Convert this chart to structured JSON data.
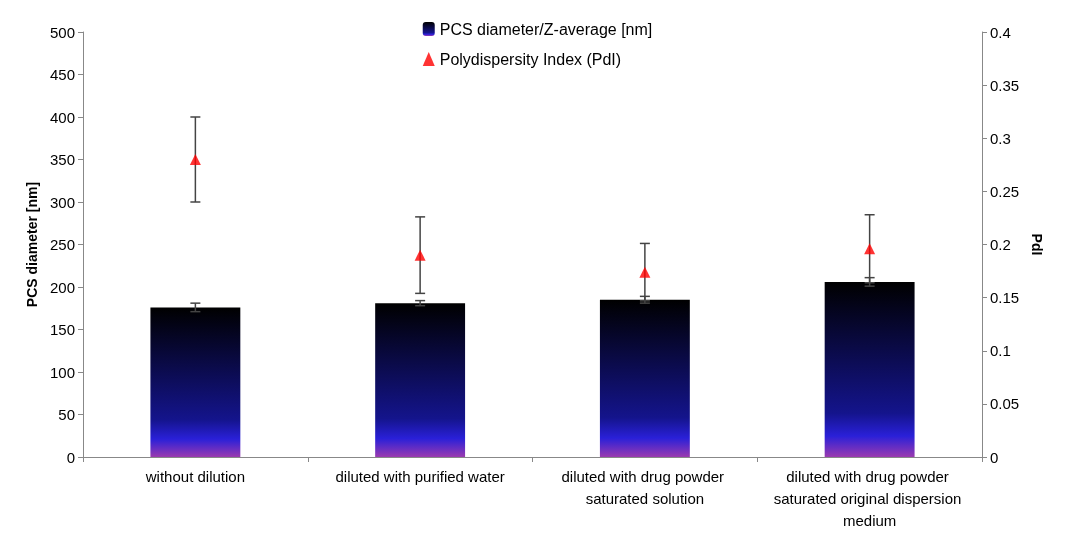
{
  "chart_data": {
    "type": "bar",
    "ylabel": "PCS diameter [nm]",
    "y2label": "PdI",
    "categories": [
      "without dilution",
      "diluted with purified water",
      "diluted with drug powder saturated solution",
      "diluted with drug powder saturated original dispersion medium"
    ],
    "series": [
      {
        "name": "PCS diameter/Z-average [nm]",
        "color": "#14148c",
        "values": [
          176,
          181,
          185,
          206
        ],
        "errors": [
          5,
          3,
          4,
          5
        ]
      },
      {
        "name": "Polydispersity Index (PdI)",
        "type": "scatter",
        "axis": "y2",
        "color": "#ff0000",
        "marker": "triangle",
        "values": [
          0.28,
          0.19,
          0.174,
          0.196
        ],
        "errors": [
          0.04,
          0.036,
          0.027,
          0.032
        ]
      }
    ],
    "ylim": [
      0,
      500
    ],
    "yticks": [
      0,
      50,
      100,
      150,
      200,
      250,
      300,
      350,
      400,
      450,
      500
    ],
    "y2lim": [
      0,
      0.4
    ],
    "y2ticks": [
      0,
      0.05,
      0.1,
      0.15,
      0.2,
      0.25,
      0.3,
      0.35,
      0.4
    ],
    "grid": false,
    "legend": "top"
  }
}
